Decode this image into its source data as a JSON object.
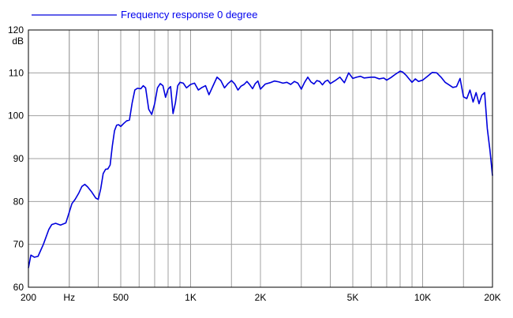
{
  "chart_data": {
    "type": "line",
    "title": "",
    "legend": {
      "entries": [
        "Frequency response 0 degree"
      ],
      "placement": "top-left"
    },
    "colors": {
      "series": "#0000dd",
      "legend_text": "#0000ee",
      "grid": "#a0a0a0",
      "frame": "#000000"
    },
    "xlabel": "",
    "ylabel": "dB",
    "x_scale": "log",
    "xlim": [
      200,
      20000
    ],
    "ylim": [
      60,
      120
    ],
    "grid": true,
    "x_ticks": [
      {
        "value": 200,
        "label": "200"
      },
      {
        "value": 300,
        "label": "Hz"
      },
      {
        "value": 500,
        "label": "500"
      },
      {
        "value": 1000,
        "label": "1K"
      },
      {
        "value": 2000,
        "label": "2K"
      },
      {
        "value": 5000,
        "label": "5K"
      },
      {
        "value": 10000,
        "label": "10K"
      },
      {
        "value": 20000,
        "label": "20K"
      }
    ],
    "x_minor_grid": [
      300,
      400,
      600,
      700,
      800,
      900,
      1500,
      3000,
      4000,
      6000,
      7000,
      8000,
      9000,
      15000
    ],
    "y_ticks": [
      {
        "value": 120,
        "label": "120"
      },
      {
        "value": 110,
        "label": "110"
      },
      {
        "value": 100,
        "label": "100"
      },
      {
        "value": 90,
        "label": "90"
      },
      {
        "value": 80,
        "label": "80"
      },
      {
        "value": 70,
        "label": "70"
      },
      {
        "value": 60,
        "label": "60"
      }
    ],
    "series": [
      {
        "name": "Frequency response 0 degree",
        "x": [
          200,
          205,
          212,
          220,
          232,
          245,
          252,
          262,
          275,
          290,
          300,
          308,
          318,
          330,
          340,
          350,
          360,
          375,
          390,
          400,
          410,
          420,
          430,
          440,
          450,
          460,
          470,
          480,
          490,
          500,
          515,
          530,
          545,
          560,
          575,
          590,
          610,
          625,
          640,
          660,
          680,
          700,
          720,
          740,
          760,
          780,
          800,
          820,
          840,
          860,
          880,
          900,
          930,
          960,
          1000,
          1040,
          1080,
          1120,
          1160,
          1200,
          1250,
          1300,
          1350,
          1400,
          1450,
          1500,
          1550,
          1600,
          1650,
          1700,
          1750,
          1800,
          1850,
          1900,
          1950,
          2000,
          2100,
          2200,
          2300,
          2400,
          2500,
          2600,
          2700,
          2800,
          2900,
          3000,
          3100,
          3200,
          3300,
          3400,
          3500,
          3600,
          3700,
          3800,
          3900,
          4000,
          4200,
          4400,
          4600,
          4800,
          5000,
          5200,
          5400,
          5600,
          5800,
          6000,
          6200,
          6500,
          6800,
          7000,
          7300,
          7600,
          8000,
          8200,
          8500,
          8800,
          9000,
          9300,
          9600,
          10000,
          10500,
          11000,
          11500,
          12000,
          12500,
          13000,
          13500,
          14000,
          14500,
          15000,
          15500,
          16000,
          16500,
          17000,
          17500,
          18000,
          18500,
          19000,
          19500,
          20000
        ],
        "y": [
          64.5,
          67.5,
          67.0,
          67.2,
          70.0,
          73.5,
          74.6,
          74.9,
          74.5,
          75.0,
          77.5,
          79.5,
          80.5,
          82.0,
          83.5,
          84.0,
          83.4,
          82.2,
          80.8,
          80.5,
          83.0,
          86.5,
          87.5,
          87.6,
          88.5,
          93.0,
          96.5,
          97.8,
          97.9,
          97.5,
          98.2,
          98.8,
          99.0,
          103.0,
          106.0,
          106.4,
          106.3,
          107.0,
          106.5,
          101.5,
          100.3,
          102.8,
          106.5,
          107.5,
          107.0,
          104.3,
          106.2,
          106.8,
          100.5,
          103.0,
          107.0,
          107.8,
          107.6,
          106.5,
          107.3,
          107.6,
          106.0,
          106.6,
          107.0,
          104.9,
          107.0,
          109.0,
          108.2,
          106.5,
          107.5,
          108.2,
          107.4,
          106.0,
          106.9,
          107.3,
          108.0,
          107.2,
          106.3,
          107.5,
          108.1,
          106.2,
          107.4,
          107.7,
          108.1,
          107.9,
          107.6,
          107.8,
          107.3,
          108.0,
          107.6,
          106.2,
          107.8,
          109.0,
          107.9,
          107.4,
          108.2,
          108.0,
          107.2,
          108.0,
          108.3,
          107.5,
          108.2,
          109.0,
          107.7,
          110.0,
          108.7,
          109.0,
          109.2,
          108.8,
          108.9,
          109.0,
          109.0,
          108.6,
          108.8,
          108.3,
          108.9,
          109.6,
          110.4,
          110.2,
          109.4,
          108.4,
          107.8,
          108.6,
          108.0,
          108.3,
          109.2,
          110.1,
          110.0,
          109.0,
          107.8,
          107.2,
          106.6,
          106.8,
          108.7,
          104.4,
          104.0,
          106.0,
          103.2,
          105.4,
          102.8,
          104.8,
          105.4,
          97.0,
          92.0,
          86.0
        ]
      }
    ]
  }
}
